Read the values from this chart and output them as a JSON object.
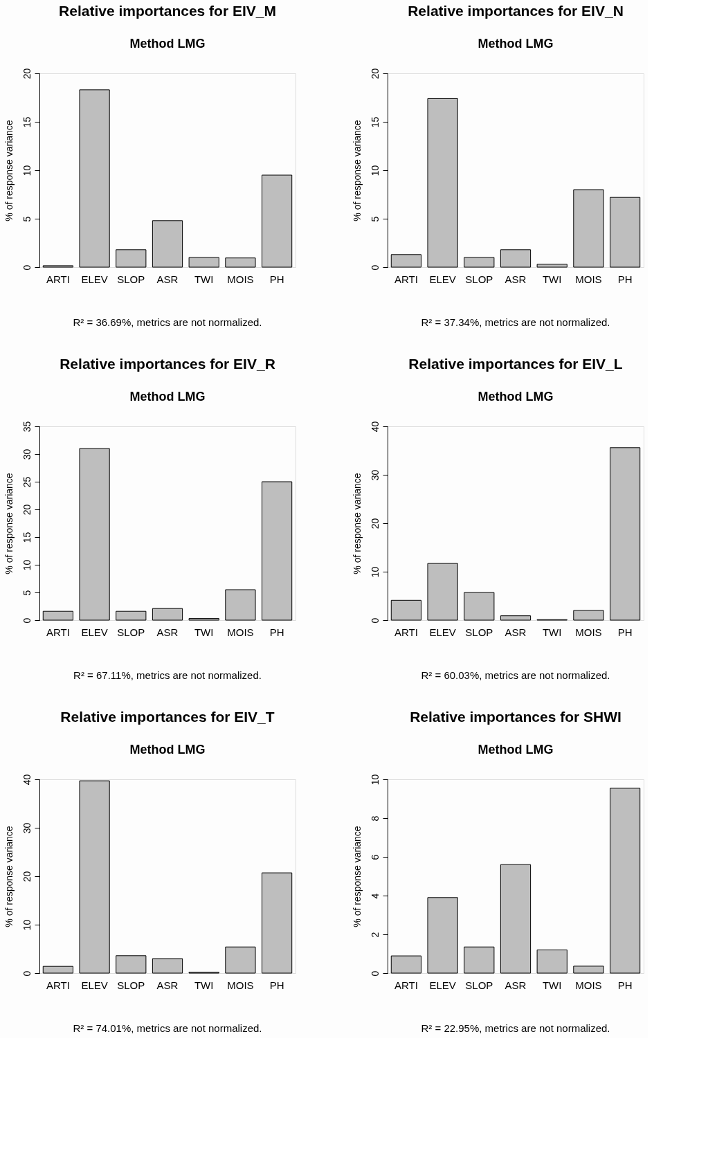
{
  "chart_data": [
    {
      "type": "bar",
      "title": "Relative importances for EIV_M",
      "subtitle": "Method LMG",
      "ylabel": "% of response variance",
      "categories": [
        "ARTI",
        "ELEV",
        "SLOP",
        "ASR",
        "TWI",
        "MOIS",
        "PH"
      ],
      "values": [
        0.15,
        18.3,
        1.8,
        4.8,
        1.0,
        0.95,
        9.5
      ],
      "color": "#bebebe",
      "ylim": [
        0,
        20
      ],
      "yticks": [
        0,
        5,
        10,
        15,
        20
      ],
      "grid": false,
      "annotations": [
        "R² = 36.69%, metrics are not normalized."
      ]
    },
    {
      "type": "bar",
      "title": "Relative importances for EIV_N",
      "subtitle": "Method LMG",
      "ylabel": "% of response variance",
      "categories": [
        "ARTI",
        "ELEV",
        "SLOP",
        "ASR",
        "TWI",
        "MOIS",
        "PH"
      ],
      "values": [
        1.3,
        17.4,
        1.0,
        1.8,
        0.3,
        8.0,
        7.2
      ],
      "color": "#bebebe",
      "ylim": [
        0,
        20
      ],
      "yticks": [
        0,
        5,
        10,
        15,
        20
      ],
      "grid": false,
      "annotations": [
        "R² = 37.34%, metrics are not normalized."
      ]
    },
    {
      "type": "bar",
      "title": "Relative importances for EIV_R",
      "subtitle": "Method LMG",
      "ylabel": "% of response variance",
      "categories": [
        "ARTI",
        "ELEV",
        "SLOP",
        "ASR",
        "TWI",
        "MOIS",
        "PH"
      ],
      "values": [
        1.6,
        31.0,
        1.6,
        2.1,
        0.3,
        5.5,
        25.0
      ],
      "color": "#bebebe",
      "ylim": [
        0,
        35
      ],
      "yticks": [
        0,
        5,
        10,
        15,
        20,
        25,
        30,
        35
      ],
      "grid": false,
      "annotations": [
        "R² = 67.11%, metrics are not normalized."
      ]
    },
    {
      "type": "bar",
      "title": "Relative importances for EIV_L",
      "subtitle": "Method LMG",
      "ylabel": "% of response variance",
      "categories": [
        "ARTI",
        "ELEV",
        "SLOP",
        "ASR",
        "TWI",
        "MOIS",
        "PH"
      ],
      "values": [
        4.1,
        11.7,
        5.7,
        0.9,
        0.1,
        2.0,
        35.6
      ],
      "color": "#bebebe",
      "ylim": [
        0,
        40
      ],
      "yticks": [
        0,
        10,
        20,
        30,
        40
      ],
      "grid": false,
      "annotations": [
        "R² = 60.03%, metrics are not normalized."
      ]
    },
    {
      "type": "bar",
      "title": "Relative importances for EIV_T",
      "subtitle": "Method LMG",
      "ylabel": "% of response variance",
      "categories": [
        "ARTI",
        "ELEV",
        "SLOP",
        "ASR",
        "TWI",
        "MOIS",
        "PH"
      ],
      "values": [
        1.4,
        39.7,
        3.6,
        3.0,
        0.2,
        5.4,
        20.7
      ],
      "color": "#bebebe",
      "ylim": [
        0,
        40
      ],
      "yticks": [
        0,
        10,
        20,
        30,
        40
      ],
      "grid": false,
      "annotations": [
        "R² = 74.01%, metrics are not normalized."
      ]
    },
    {
      "type": "bar",
      "title": "Relative importances for SHWI",
      "subtitle": "Method LMG",
      "ylabel": "% of response variance",
      "categories": [
        "ARTI",
        "ELEV",
        "SLOP",
        "ASR",
        "TWI",
        "MOIS",
        "PH"
      ],
      "values": [
        0.89,
        3.9,
        1.35,
        5.6,
        1.2,
        0.36,
        9.54
      ],
      "color": "#bebebe",
      "ylim": [
        0,
        10
      ],
      "yticks": [
        0,
        2,
        4,
        6,
        8,
        10
      ],
      "grid": false,
      "annotations": [
        "R² = 22.95%, metrics are not normalized."
      ]
    }
  ]
}
